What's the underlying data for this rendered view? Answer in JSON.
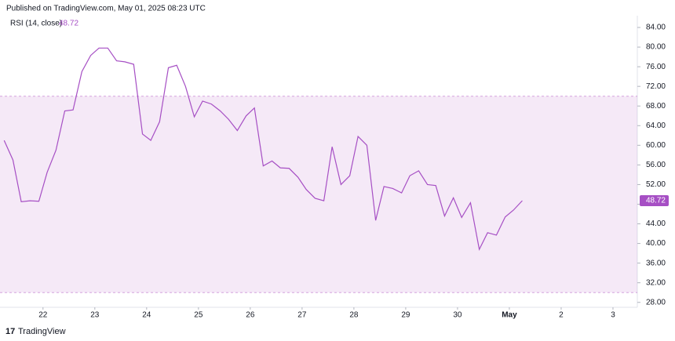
{
  "header": {
    "published": "Published on TradingView.com, May 01, 2025 08:23 UTC"
  },
  "footer": {
    "brand": "TradingView"
  },
  "chart_data": {
    "type": "line",
    "series": [
      {
        "name": "RSI (14, close)",
        "color": "#a64fc4",
        "x": [
          21.25,
          21.42,
          21.58,
          21.75,
          21.92,
          22.08,
          22.25,
          22.42,
          22.58,
          22.75,
          22.92,
          23.08,
          23.25,
          23.42,
          23.58,
          23.75,
          23.92,
          24.08,
          24.25,
          24.42,
          24.58,
          24.75,
          24.92,
          25.08,
          25.25,
          25.42,
          25.58,
          25.75,
          25.92,
          26.08,
          26.25,
          26.42,
          26.58,
          26.75,
          26.92,
          27.08,
          27.25,
          27.42,
          27.58,
          27.75,
          27.92,
          28.08,
          28.25,
          28.42,
          28.58,
          28.75,
          28.92,
          29.08,
          29.25,
          29.42,
          29.58,
          29.75,
          29.92,
          30.08,
          30.25,
          30.42,
          30.58,
          30.75,
          30.92,
          31.08,
          31.25
        ],
        "values": [
          61,
          57,
          48.5,
          48.7,
          48.6,
          54.5,
          59,
          67,
          67.2,
          75,
          78.3,
          79.8,
          79.8,
          77.2,
          77,
          76.5,
          62.3,
          61,
          64.8,
          75.8,
          76.3,
          72,
          65.8,
          69,
          68.4,
          67,
          65.3,
          63,
          66,
          67.6,
          55.8,
          56.8,
          55.4,
          55.3,
          53.5,
          51,
          49.2,
          48.7,
          59.7,
          52,
          53.8,
          61.8,
          60,
          44.7,
          51.6,
          51.2,
          50.3,
          53.8,
          54.8,
          52,
          51.8,
          45.6,
          49.3,
          45.3,
          48.3,
          38.8,
          42.2,
          41.7,
          45.4,
          46.8,
          48.72
        ]
      }
    ],
    "band": {
      "lower": 30,
      "upper": 70,
      "color": "#9c27b0"
    },
    "xlim": [
      21.17,
      33.47
    ],
    "xticks": [
      22,
      23,
      24,
      25,
      26,
      27,
      28,
      29,
      30,
      {
        "value": 31,
        "label": "May"
      },
      {
        "value": 32,
        "label": "2"
      },
      {
        "value": 33,
        "label": "3"
      }
    ],
    "ylim": [
      27,
      86.4
    ],
    "yticks": [
      {
        "value": 28,
        "label": "28.00"
      },
      {
        "value": 32,
        "label": "32.00"
      },
      {
        "value": 36,
        "label": "36.00"
      },
      {
        "value": 40,
        "label": "40.00"
      },
      {
        "value": 44,
        "label": "44.00"
      },
      {
        "value": 48,
        "label": "48.00"
      },
      {
        "value": 52,
        "label": "52.00"
      },
      {
        "value": 56,
        "label": "56.00"
      },
      {
        "value": 60,
        "label": "60.00"
      },
      {
        "value": 64,
        "label": "64.00"
      },
      {
        "value": 68,
        "label": "68.00"
      },
      {
        "value": 72,
        "label": "72.00"
      },
      {
        "value": 76,
        "label": "76.00"
      },
      {
        "value": 80,
        "label": "80.00"
      },
      {
        "value": 84,
        "label": "84.00"
      }
    ],
    "grid": false
  }
}
